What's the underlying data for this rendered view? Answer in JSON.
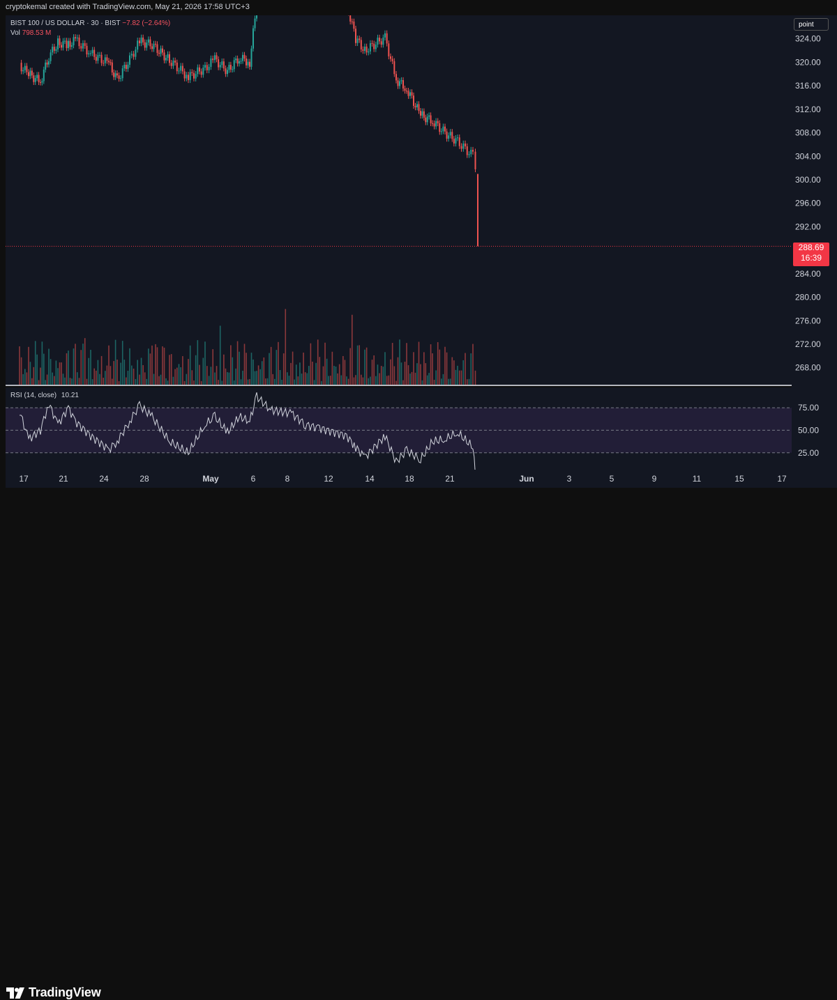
{
  "header": {
    "credit": "cryptokemal created with TradingView.com, May 21, 2026 17:58 UTC+3"
  },
  "legend": {
    "symbol": "BIST 100 / US DOLLAR · 30 · BIST",
    "change": "−7.82 (−2.64%)",
    "vol_label": "Vol",
    "vol_value": "798.53 M"
  },
  "toolbar": {
    "point_label": "point"
  },
  "last_price": {
    "value": "288.69",
    "countdown": "16:39"
  },
  "rsi": {
    "label": "RSI (14, close)",
    "value": "10.21"
  },
  "footer": {
    "brand": "TradingView"
  },
  "colors": {
    "up": "#26a69a",
    "down": "#ef5350",
    "rsi_line": "#d1d4dc",
    "rsi_band": "#2a2240"
  },
  "chart_data": [
    {
      "type": "candlestick",
      "title": "BIST 100 / US DOLLAR · 30 · BIST",
      "y_axis_ticks": [
        "324.00",
        "320.00",
        "316.00",
        "312.00",
        "308.00",
        "304.00",
        "300.00",
        "296.00",
        "292.00",
        "288.00",
        "284.00",
        "280.00",
        "276.00",
        "272.00",
        "268.00"
      ],
      "x_axis_ticks": [
        "17",
        "21",
        "24",
        "28",
        "May",
        "6",
        "8",
        "12",
        "14",
        "18",
        "21",
        "Jun",
        "3",
        "5",
        "9",
        "11",
        "15",
        "17"
      ],
      "ylim": [
        265.0,
        328.0
      ],
      "last_price": 288.69,
      "path_close": [
        {
          "x": "Apr 16",
          "y": 319.5
        },
        {
          "x": "Apr 17",
          "y": 318.0
        },
        {
          "x": "Apr 18",
          "y": 316.7
        },
        {
          "x": "Apr 19",
          "y": 321.0
        },
        {
          "x": "Apr 20",
          "y": 323.3
        },
        {
          "x": "Apr 21",
          "y": 323.0
        },
        {
          "x": "Apr 22",
          "y": 323.8
        },
        {
          "x": "Apr 23",
          "y": 321.5
        },
        {
          "x": "Apr 24",
          "y": 319.8
        },
        {
          "x": "Apr 25",
          "y": 317.0
        },
        {
          "x": "Apr 26",
          "y": 320.5
        },
        {
          "x": "Apr 27",
          "y": 323.5
        },
        {
          "x": "Apr 28",
          "y": 323.0
        },
        {
          "x": "Apr 29",
          "y": 320.3
        },
        {
          "x": "Apr 30",
          "y": 317.5
        },
        {
          "x": "May 1",
          "y": 319.0
        },
        {
          "x": "May 2",
          "y": 320.5
        },
        {
          "x": "May 3",
          "y": 318.5
        },
        {
          "x": "May 4",
          "y": 320.8
        },
        {
          "x": "May 5",
          "y": 320.0
        },
        {
          "x": "May 6",
          "y": 330.0
        },
        {
          "x": "May 11",
          "y": 330.0
        },
        {
          "x": "May 12",
          "y": 324.0
        },
        {
          "x": "May 13",
          "y": 322.0
        },
        {
          "x": "May 14",
          "y": 324.2
        },
        {
          "x": "May 15",
          "y": 317.0
        },
        {
          "x": "May 16",
          "y": 315.5
        },
        {
          "x": "May 17",
          "y": 311.0
        },
        {
          "x": "May 18",
          "y": 310.0
        },
        {
          "x": "May 19",
          "y": 308.0
        },
        {
          "x": "May 20",
          "y": 306.5
        },
        {
          "x": "May 21",
          "y": 304.0
        },
        {
          "x": "May 21",
          "y": 301.0
        },
        {
          "x": "May 21",
          "y": 288.69
        }
      ],
      "volume": {
        "label": "Vol",
        "last": "798.53 M"
      }
    },
    {
      "type": "line",
      "title": "RSI (14, close)",
      "y_axis_ticks": [
        "75.00",
        "50.00",
        "25.00"
      ],
      "ylim": [
        15,
        88
      ],
      "band": [
        30,
        70
      ],
      "last_value": 10.21,
      "path": [
        {
          "x": "Apr 16",
          "y": 67
        },
        {
          "x": "Apr 17",
          "y": 42
        },
        {
          "x": "Apr 18",
          "y": 50
        },
        {
          "x": "Apr 19",
          "y": 74
        },
        {
          "x": "Apr 20",
          "y": 55
        },
        {
          "x": "Apr 21",
          "y": 70
        },
        {
          "x": "Apr 22",
          "y": 58
        },
        {
          "x": "Apr 23",
          "y": 45
        },
        {
          "x": "Apr 24",
          "y": 33
        },
        {
          "x": "Apr 25",
          "y": 40
        },
        {
          "x": "Apr 26",
          "y": 58
        },
        {
          "x": "Apr 27",
          "y": 72
        },
        {
          "x": "Apr 28",
          "y": 62
        },
        {
          "x": "Apr 29",
          "y": 40
        },
        {
          "x": "Apr 30",
          "y": 30
        },
        {
          "x": "May 1",
          "y": 55
        },
        {
          "x": "May 2",
          "y": 62
        },
        {
          "x": "May 3",
          "y": 48
        },
        {
          "x": "May 4",
          "y": 62
        },
        {
          "x": "May 5",
          "y": 58
        },
        {
          "x": "May 6",
          "y": 80
        },
        {
          "x": "May 7",
          "y": 68
        },
        {
          "x": "May 8",
          "y": 65
        },
        {
          "x": "May 9",
          "y": 55
        },
        {
          "x": "May 10",
          "y": 52
        },
        {
          "x": "May 11",
          "y": 45
        },
        {
          "x": "May 12",
          "y": 35
        },
        {
          "x": "May 13",
          "y": 26
        },
        {
          "x": "May 14",
          "y": 45
        },
        {
          "x": "May 15",
          "y": 22
        },
        {
          "x": "May 16",
          "y": 32
        },
        {
          "x": "May 17",
          "y": 24
        },
        {
          "x": "May 18",
          "y": 40
        },
        {
          "x": "May 19",
          "y": 42
        },
        {
          "x": "May 20",
          "y": 48
        },
        {
          "x": "May 21",
          "y": 35
        },
        {
          "x": "May 21",
          "y": 10.21
        }
      ]
    }
  ]
}
